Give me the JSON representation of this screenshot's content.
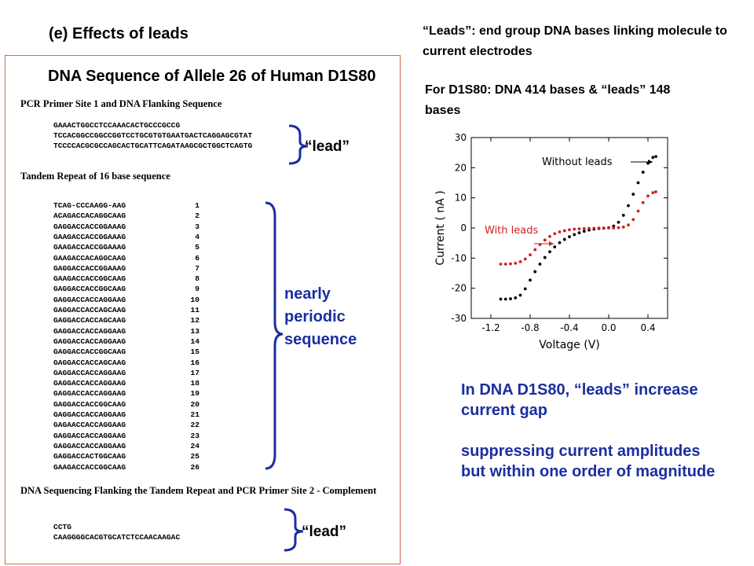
{
  "slide": {
    "title": "(e) Effects of leads",
    "leads_note": "“Leads”: end group DNA bases linking molecule to current electrodes",
    "d1s80_note": "For D1S80: DNA 414 bases & “leads” 148 bases"
  },
  "sequence_figure": {
    "heading": "DNA Sequence of Allele 26 of Human D1S80",
    "section1_title": "PCR Primer Site 1 and DNA Flanking Sequence",
    "flank1_lines": [
      "GAAACTGGCCTCCAAACACTGCCCGCCG",
      "TCCACGGCCGGCCGGTCCTGCGTGTGAATGACTCAGGAGCGTAT",
      "TCCCCACGCGCCAGCACTGCATTCAGATAAGCGCTGGCTCAGTG"
    ],
    "section2_title": "Tandem Repeat of 16 base sequence",
    "repeats": [
      {
        "seq": "TCAG-CCCAAGG-AAG",
        "num": "1"
      },
      {
        "seq": "ACAGACCACAGGCAAG",
        "num": "2"
      },
      {
        "seq": "GAGGACCACCGGAAAG",
        "num": "3"
      },
      {
        "seq": "GAAGACCACCGGAAAG",
        "num": "4"
      },
      {
        "seq": "GAAGACCACCGGAAAG",
        "num": "5"
      },
      {
        "seq": "GAAGACCACAGGCAAG",
        "num": "6"
      },
      {
        "seq": "GAGGACCACCGGAAAG",
        "num": "7"
      },
      {
        "seq": "GAAGACCACCGGCAAG",
        "num": "8"
      },
      {
        "seq": "GAGGACCACCGGCAAG",
        "num": "9"
      },
      {
        "seq": "GAGGACCACCAGGAAG",
        "num": "10"
      },
      {
        "seq": "GAGGACCACCAGCAAG",
        "num": "11"
      },
      {
        "seq": "GAGGACCACCAGCAAG",
        "num": "12"
      },
      {
        "seq": "GAGGACCACCAGGAAG",
        "num": "13"
      },
      {
        "seq": "GAGGACCACCAGGAAG",
        "num": "14"
      },
      {
        "seq": "GAGGACCACCGGCAAG",
        "num": "15"
      },
      {
        "seq": "GAGGACCACCAGCAAG",
        "num": "16"
      },
      {
        "seq": "GAGGACCACCAGGAAG",
        "num": "17"
      },
      {
        "seq": "GAGGACCACCAGGAAG",
        "num": "18"
      },
      {
        "seq": "GAGGACCACCAGGAAG",
        "num": "19"
      },
      {
        "seq": "GAGGACCACCGGCAAG",
        "num": "20"
      },
      {
        "seq": "GAGGACCACCAGGAAG",
        "num": "21"
      },
      {
        "seq": "GAGAACCACCAGGAAG",
        "num": "22"
      },
      {
        "seq": "GAGGACCACCAGGAAG",
        "num": "23"
      },
      {
        "seq": "GAGGACCACCAGGAAG",
        "num": "24"
      },
      {
        "seq": "GAGGACCACTGGCAAG",
        "num": "25"
      },
      {
        "seq": "GAAGACCACCGGCAAG",
        "num": "26"
      }
    ],
    "section3_title": "DNA Sequencing Flanking the Tandem Repeat and PCR Primer Site 2 - Complement",
    "flank2_lines": [
      "CCTG",
      "CAAGGGGCACGTGCATCTCCAACAAGAC"
    ]
  },
  "annotations": {
    "lead_top": "“lead”",
    "lead_bottom": "“lead”",
    "periodic_lines": [
      "nearly",
      "periodic",
      "sequence"
    ],
    "brace_color": "#1a2fa0",
    "accent_color": "#1a2fa0"
  },
  "conclusion": {
    "line1": "In DNA D1S80, “leads” increase current gap",
    "line2": "suppressing current amplitudes but within one order of magnitude"
  },
  "chart_data": {
    "type": "scatter",
    "xlabel": "Voltage (V)",
    "ylabel": "Current ( nA )",
    "xlim": [
      -1.4,
      0.6
    ],
    "ylim": [
      -30,
      30
    ],
    "xticks": [
      -1.2,
      -0.8,
      -0.4,
      0.0,
      0.4
    ],
    "xtick_labels": [
      "-1.2",
      "-0.8",
      "-0.4",
      "0.0",
      "0.4"
    ],
    "yticks": [
      -30,
      -20,
      -10,
      0,
      10,
      20,
      30
    ],
    "ytick_labels": [
      "-30",
      "-20",
      "-10",
      "0",
      "10",
      "20",
      "30"
    ],
    "annotations": [
      "Without leads",
      "With leads"
    ],
    "series": [
      {
        "color": "#000000",
        "x": [
          -1.1,
          -1.05,
          -1.0,
          -0.95,
          -0.9,
          -0.85,
          -0.8,
          -0.75,
          -0.7,
          -0.65,
          -0.6,
          -0.55,
          -0.5,
          -0.45,
          -0.4,
          -0.35,
          -0.3,
          -0.25,
          -0.2,
          -0.15,
          -0.1,
          -0.05,
          0.0,
          0.05,
          0.1,
          0.15,
          0.2,
          0.25,
          0.3,
          0.35,
          0.4,
          0.45,
          0.48
        ],
        "y": [
          -23.6,
          -23.6,
          -23.5,
          -23.2,
          -22.3,
          -20.2,
          -17.3,
          -14.5,
          -12.0,
          -9.8,
          -7.9,
          -6.3,
          -4.9,
          -3.8,
          -2.9,
          -2.2,
          -1.6,
          -1.1,
          -0.7,
          -0.4,
          -0.2,
          -0.1,
          0.1,
          0.6,
          1.9,
          4.2,
          7.4,
          11.2,
          15.0,
          18.5,
          21.5,
          23.4,
          23.7
        ]
      },
      {
        "color": "#d11f1f",
        "x": [
          -1.1,
          -1.05,
          -1.0,
          -0.95,
          -0.9,
          -0.85,
          -0.8,
          -0.75,
          -0.7,
          -0.65,
          -0.6,
          -0.55,
          -0.5,
          -0.45,
          -0.4,
          -0.35,
          -0.3,
          -0.25,
          -0.2,
          -0.15,
          -0.1,
          -0.05,
          0.0,
          0.05,
          0.1,
          0.15,
          0.2,
          0.25,
          0.3,
          0.35,
          0.4,
          0.45,
          0.48
        ],
        "y": [
          -12.0,
          -12.0,
          -11.9,
          -11.7,
          -11.2,
          -10.3,
          -8.9,
          -7.2,
          -5.5,
          -4.0,
          -2.8,
          -1.9,
          -1.3,
          -0.9,
          -0.6,
          -0.4,
          -0.3,
          -0.2,
          -0.15,
          -0.1,
          -0.05,
          0.0,
          0.0,
          0.0,
          0.1,
          0.3,
          1.0,
          2.8,
          5.6,
          8.4,
          10.6,
          11.7,
          12.0
        ]
      }
    ]
  }
}
